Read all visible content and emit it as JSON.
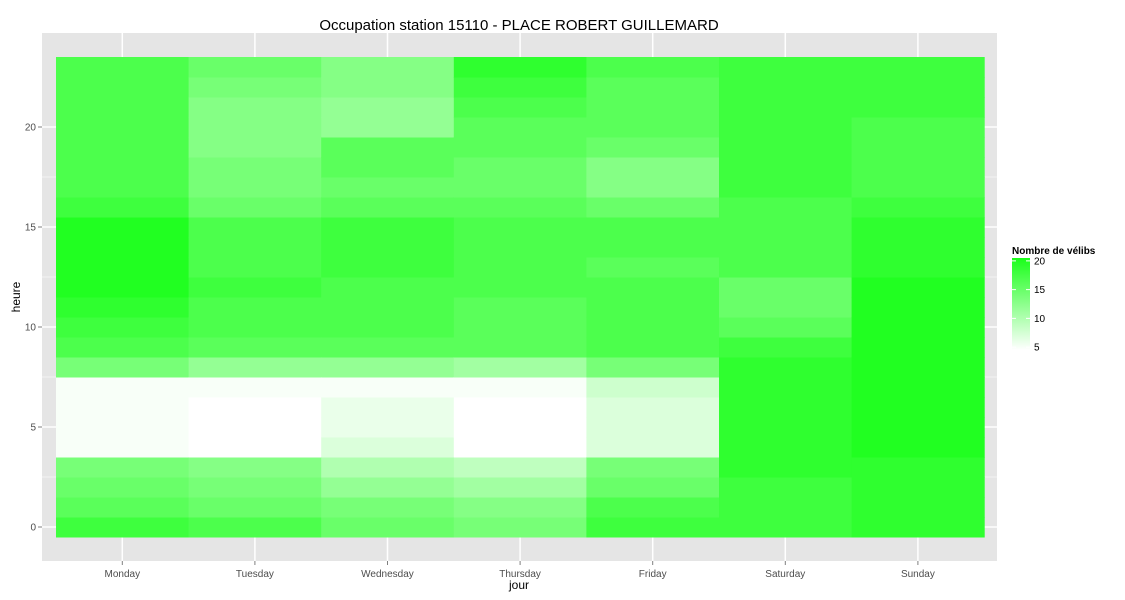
{
  "chart_data": {
    "type": "heatmap",
    "title": "Occupation station 15110 - PLACE ROBERT GUILLEMARD",
    "xlabel": "jour",
    "ylabel": "heure",
    "x_categories": [
      "Monday",
      "Tuesday",
      "Wednesday",
      "Thursday",
      "Friday",
      "Saturday",
      "Sunday"
    ],
    "y_values": [
      0,
      1,
      2,
      3,
      4,
      5,
      6,
      7,
      8,
      9,
      10,
      11,
      12,
      13,
      14,
      15,
      16,
      17,
      18,
      19,
      20,
      21,
      22,
      23
    ],
    "y_ticks": [
      0,
      5,
      10,
      15,
      20
    ],
    "ylim": [
      -0.5,
      23.5
    ],
    "grid": true,
    "legend": {
      "title": "Nombre de vélibs",
      "position": "right",
      "ticks": [
        20,
        15,
        10,
        5
      ],
      "min": 4.5,
      "max": 20.5,
      "low_color": "#ffffff",
      "high_color": "#1aff1a"
    },
    "colors": {
      "panel": "#e5e5e5",
      "grid_major": "#ffffff",
      "grid_minor": "#f2f2f2",
      "tick": "#7f7f7f"
    },
    "series": [
      {
        "category": "Monday",
        "values": [
          18,
          16,
          15,
          14,
          5,
          5,
          5,
          5,
          14,
          17,
          18,
          19,
          20,
          20,
          20,
          20,
          18,
          17,
          17,
          17,
          17,
          17,
          17,
          17
        ]
      },
      {
        "category": "Tuesday",
        "values": [
          17,
          15,
          14,
          13,
          4,
          4,
          4,
          5,
          12,
          16,
          17,
          17,
          18,
          17,
          17,
          17,
          15,
          14,
          14,
          13,
          13,
          13,
          14,
          15
        ]
      },
      {
        "category": "Wednesday",
        "values": [
          15,
          14,
          12,
          10,
          7,
          6,
          6,
          5,
          12,
          16,
          17,
          17,
          17,
          18,
          18,
          18,
          16,
          15,
          16,
          16,
          12,
          12,
          13,
          13
        ]
      },
      {
        "category": "Thursday",
        "values": [
          14,
          13,
          11,
          9,
          4,
          4,
          4,
          5,
          11,
          16,
          16,
          16,
          17,
          17,
          17,
          17,
          16,
          15,
          15,
          16,
          16,
          17,
          18,
          19
        ]
      },
      {
        "category": "Friday",
        "values": [
          18,
          17,
          15,
          14,
          7,
          7,
          7,
          8,
          14,
          17,
          17,
          17,
          17,
          16,
          17,
          17,
          15,
          13,
          13,
          15,
          16,
          16,
          16,
          17
        ]
      },
      {
        "category": "Saturday",
        "values": [
          18,
          18,
          18,
          19,
          19,
          19,
          19,
          19,
          19,
          18,
          16,
          15,
          15,
          17,
          17,
          17,
          17,
          18,
          18,
          18,
          18,
          18,
          18,
          18
        ]
      },
      {
        "category": "Sunday",
        "values": [
          19,
          19,
          19,
          19,
          20,
          20,
          20,
          20,
          20,
          20,
          20,
          20,
          20,
          19,
          19,
          19,
          18,
          17,
          17,
          17,
          17,
          18,
          18,
          18
        ]
      }
    ]
  }
}
